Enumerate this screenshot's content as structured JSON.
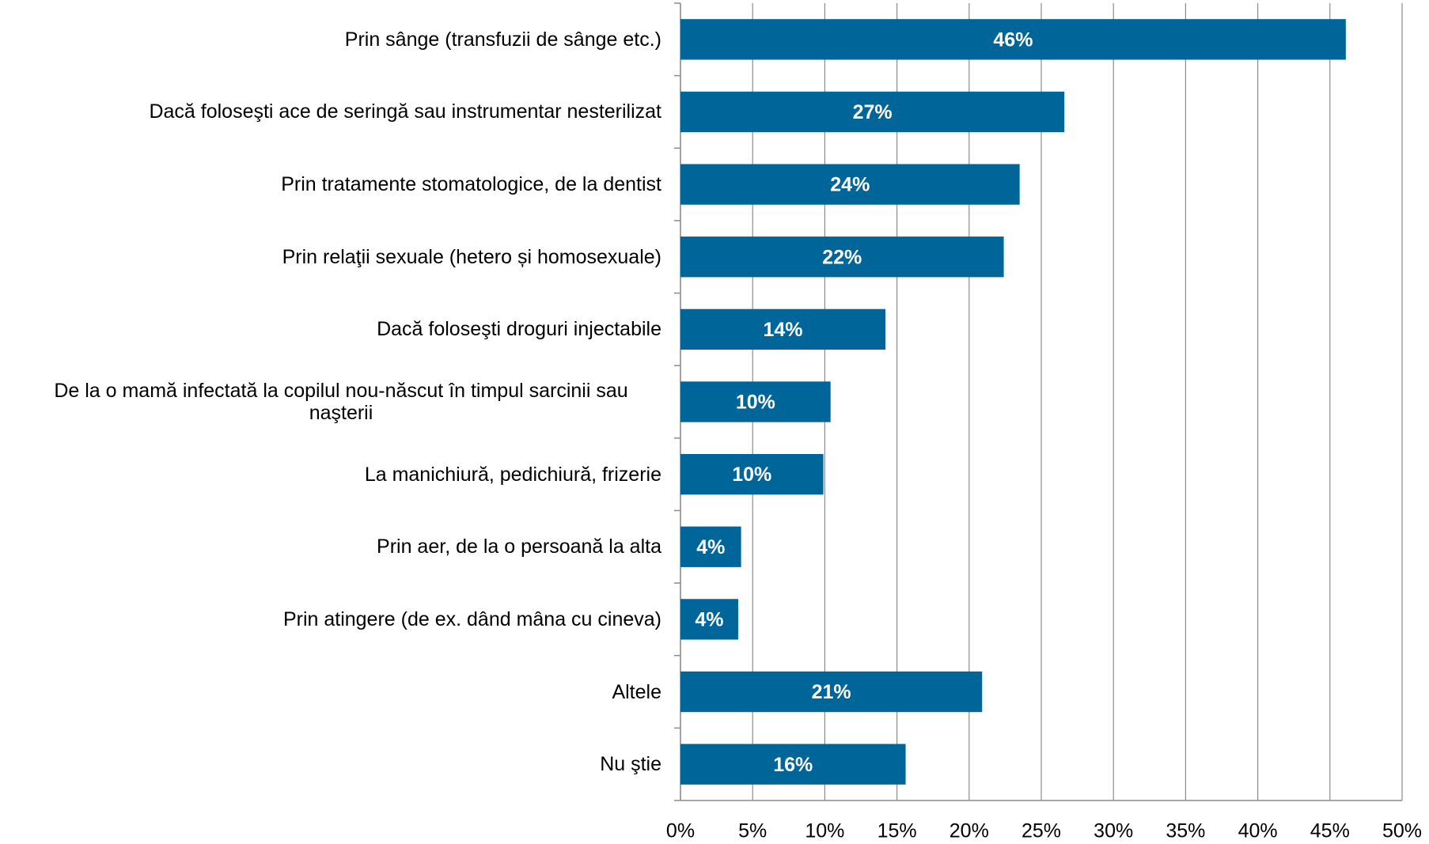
{
  "chart_data": {
    "type": "bar",
    "orientation": "horizontal",
    "categories": [
      "Prin sânge (transfuzii de sânge etc.)",
      "Dacă foloseşti ace de seringă sau instrumentar nesterilizat",
      "Prin tratamente stomatologice, de la dentist",
      "Prin relaţii sexuale (hetero și homosexuale)",
      "Dacă foloseşti droguri injectabile",
      "De la o mamă infectată la copilul nou-născut în timpul sarcinii sau naşterii",
      "La manichiură, pedichiură, frizerie",
      "Prin aer, de la o persoană la alta",
      "Prin atingere (de ex. dând mâna cu cineva)",
      "Altele",
      "Nu ştie"
    ],
    "values": [
      46.1,
      26.6,
      23.5,
      22.4,
      14.2,
      10.4,
      9.9,
      4.2,
      4.0,
      20.9,
      15.6
    ],
    "value_labels": [
      "46%",
      "27%",
      "24%",
      "22%",
      "14%",
      "10%",
      "10%",
      "4%",
      "4%",
      "21%",
      "16%"
    ],
    "color": "#006699",
    "xlim": [
      0,
      50
    ],
    "xticks": [
      {
        "value": 0,
        "label": "0%"
      },
      {
        "value": 5,
        "label": "5%"
      },
      {
        "value": 10,
        "label": "10%"
      },
      {
        "value": 15,
        "label": "15%"
      },
      {
        "value": 20,
        "label": "20%"
      },
      {
        "value": 25,
        "label": "25%"
      },
      {
        "value": 30,
        "label": "30%"
      },
      {
        "value": 35,
        "label": "35%"
      },
      {
        "value": 40,
        "label": "40%"
      },
      {
        "value": 45,
        "label": "45%"
      },
      {
        "value": 50,
        "label": "50%"
      }
    ],
    "grid": true
  }
}
